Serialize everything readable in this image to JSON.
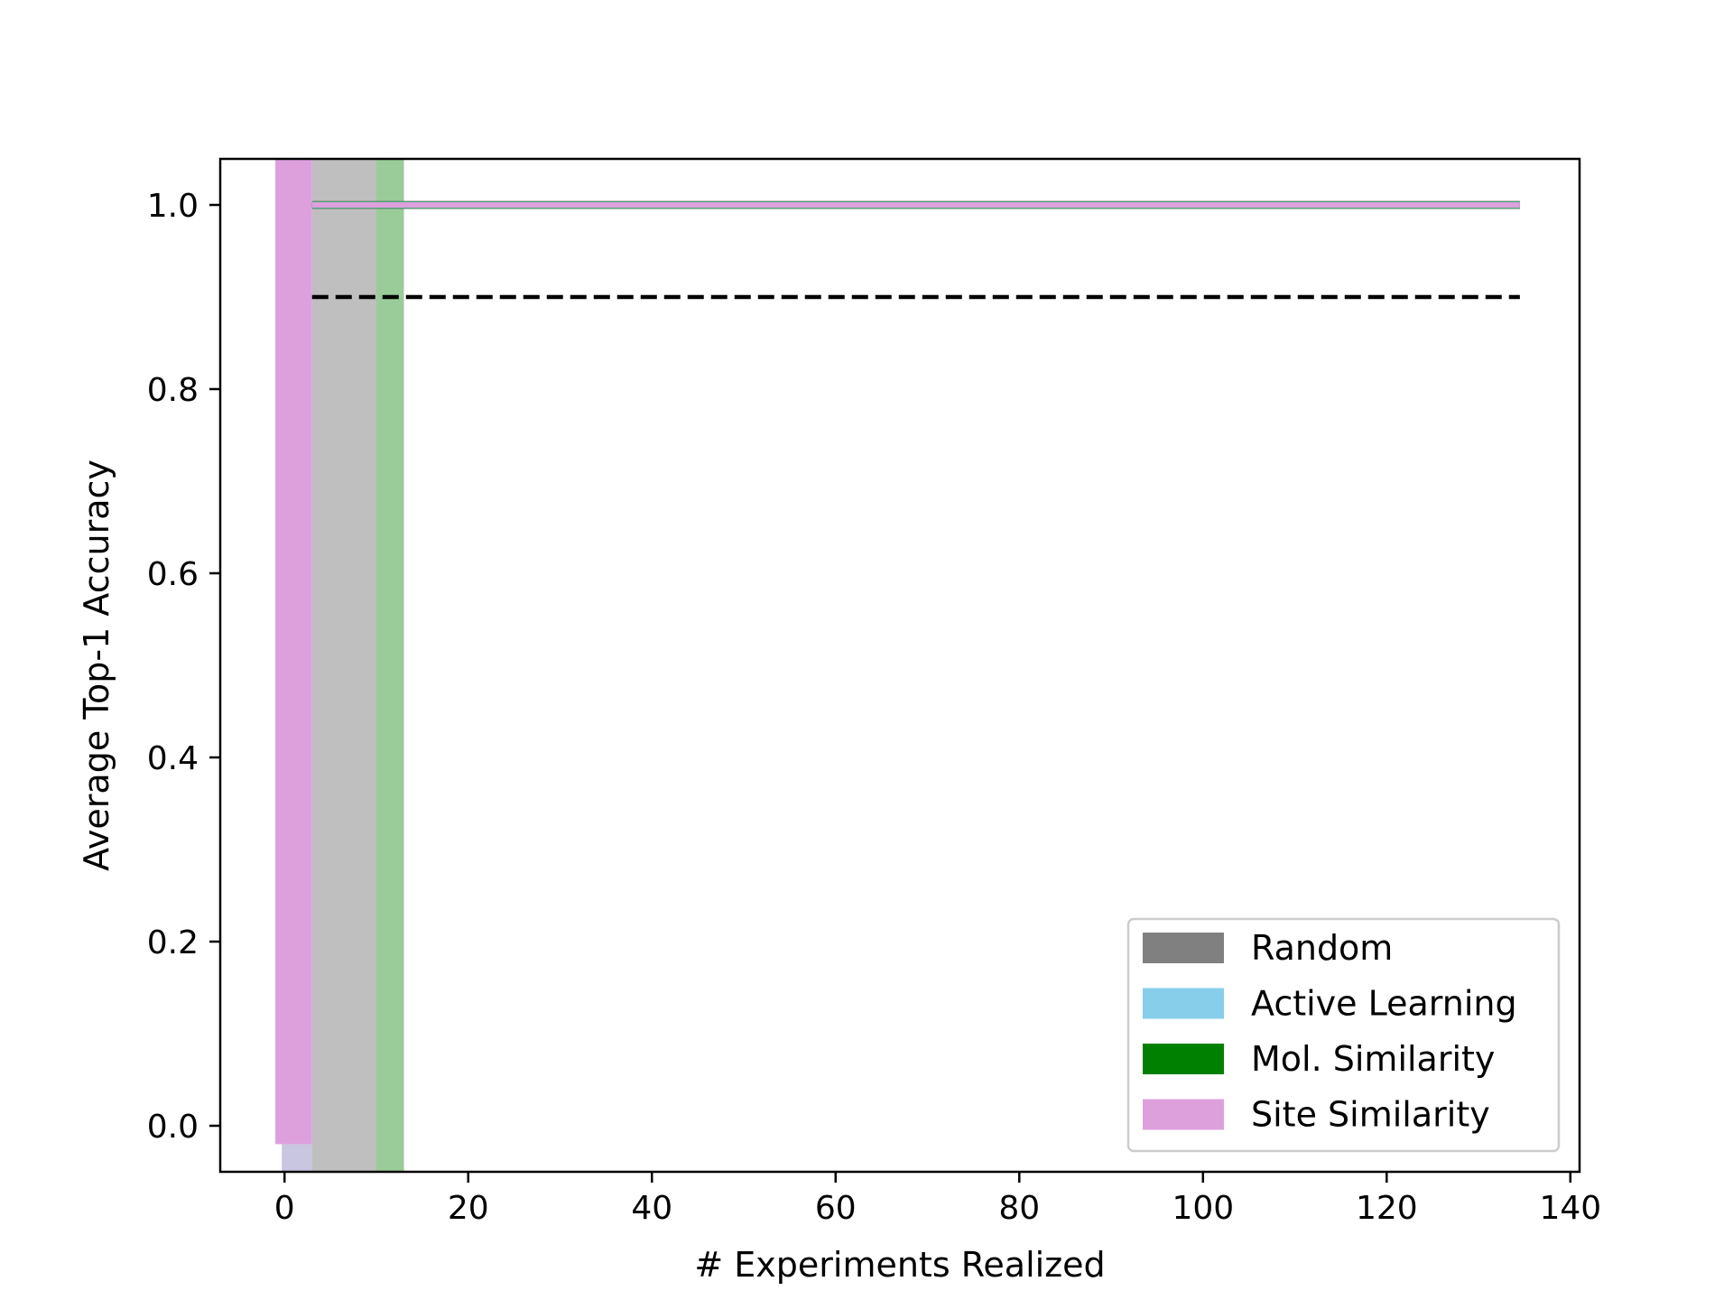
{
  "chart_data": {
    "type": "area",
    "title": "",
    "xlabel": "# Experiments Realized",
    "ylabel": "Average Top-1 Accuracy",
    "xlim": [
      -7,
      141
    ],
    "ylim": [
      -0.05,
      1.05
    ],
    "xticks": [
      0,
      20,
      40,
      60,
      80,
      100,
      120,
      140
    ],
    "yticks": [
      0.0,
      0.2,
      0.4,
      0.6,
      0.8,
      1.0
    ],
    "ytick_labels": [
      "0.0",
      "0.2",
      "0.4",
      "0.6",
      "0.8",
      "1.0"
    ],
    "legend_position": "lower-right",
    "grid": false,
    "colors": {
      "random": "#808080",
      "active_learning": "#87ceeb",
      "mol_similarity": "#008000",
      "site_similarity": "#dda0dd",
      "threshold": "#000000"
    },
    "series": [
      {
        "name": "Random",
        "mean": [
          [
            3,
            1.0
          ],
          [
            134.5,
            1.0
          ]
        ],
        "band": {
          "x": [
            3,
            10
          ],
          "lower": -0.05,
          "upper": 1.05
        }
      },
      {
        "name": "Active Learning",
        "mean": [
          [
            3,
            1.0
          ],
          [
            134.5,
            1.0
          ]
        ],
        "band": {
          "x": [
            -0.3,
            3
          ],
          "lower": -0.05,
          "upper": -0.02
        }
      },
      {
        "name": "Mol. Similarity",
        "mean": [
          [
            3,
            1.0
          ],
          [
            134.5,
            1.0
          ]
        ],
        "band": {
          "x": [
            10,
            13
          ],
          "lower": -0.05,
          "upper": 1.05
        }
      },
      {
        "name": "Site Similarity",
        "mean": [
          [
            3,
            1.0
          ],
          [
            134.5,
            1.0
          ]
        ],
        "band": {
          "x": [
            -1,
            3
          ],
          "lower": -0.02,
          "upper": 1.05
        }
      }
    ],
    "threshold": {
      "y": 0.9,
      "x": [
        3,
        134.5
      ],
      "style": "dashed"
    }
  }
}
